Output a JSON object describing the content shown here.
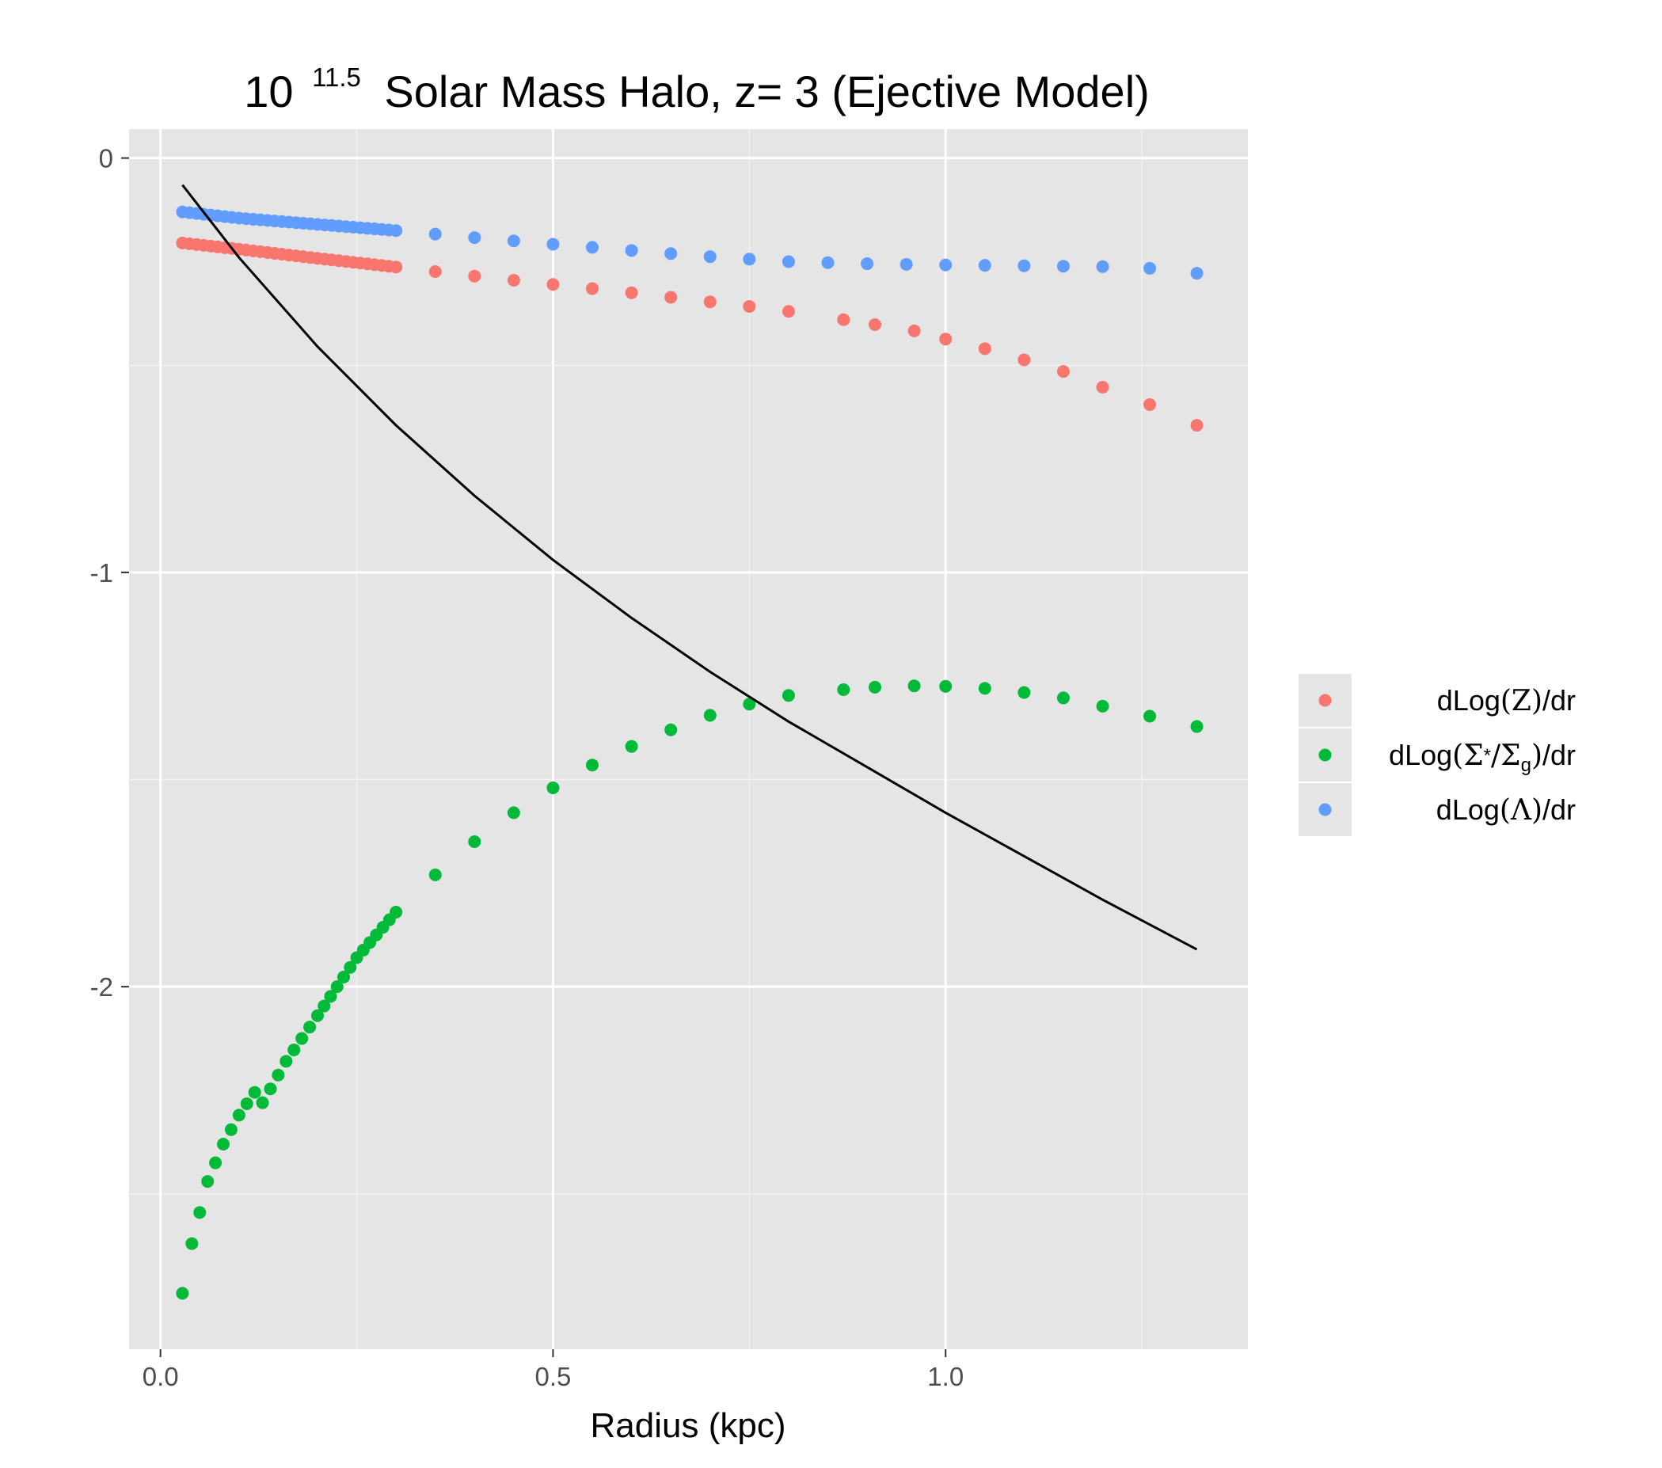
{
  "chart_data": {
    "type": "scatter",
    "title": {
      "base": "10",
      "exponent": "11.5",
      "rest": "Solar Mass Halo, z= 3 (Ejective Model)"
    },
    "xlabel": "Radius (kpc)",
    "ylabel": "",
    "xlim": [
      -0.04,
      1.385
    ],
    "ylim": [
      -2.875,
      0.07
    ],
    "x_ticks": [
      {
        "value": 0.0,
        "label": "0.0"
      },
      {
        "value": 0.5,
        "label": "0.5"
      },
      {
        "value": 1.0,
        "label": "1.0"
      }
    ],
    "x_minor": [
      0.25,
      0.75,
      1.25
    ],
    "y_ticks": [
      {
        "value": 0,
        "label": "0"
      },
      {
        "value": -1,
        "label": "-1"
      },
      {
        "value": -2,
        "label": "-2"
      }
    ],
    "y_minor": [
      -0.5,
      -1.5,
      -2.5
    ],
    "grid": true,
    "legend_position": "right",
    "legend": [
      {
        "series": "z",
        "label": "dLog(Z)/dr"
      },
      {
        "series": "ratio",
        "label": "dLog(Σ*/Σg)/dr"
      },
      {
        "series": "lambda",
        "label": "dLog(Λ)/dr"
      }
    ],
    "series": [
      {
        "key": "z",
        "color": "#F8766D",
        "points": [
          [
            0.028,
            -0.205
          ],
          [
            0.1,
            -0.22
          ],
          [
            0.2,
            -0.242
          ],
          [
            0.3,
            -0.263
          ],
          [
            0.4,
            -0.285
          ],
          [
            0.5,
            -0.305
          ],
          [
            0.6,
            -0.325
          ],
          [
            0.7,
            -0.347
          ],
          [
            0.75,
            -0.358
          ],
          [
            0.8,
            -0.37
          ],
          [
            0.87,
            -0.39
          ],
          [
            0.91,
            -0.402
          ],
          [
            0.96,
            -0.417
          ],
          [
            1.0,
            -0.437
          ],
          [
            1.05,
            -0.46
          ],
          [
            1.1,
            -0.487
          ],
          [
            1.15,
            -0.515
          ],
          [
            1.2,
            -0.553
          ],
          [
            1.26,
            -0.595
          ],
          [
            1.32,
            -0.645
          ]
        ]
      },
      {
        "key": "ratio",
        "color": "#00BA38",
        "points": [
          [
            0.028,
            -2.74
          ],
          [
            0.04,
            -2.62
          ],
          [
            0.06,
            -2.47
          ],
          [
            0.08,
            -2.38
          ],
          [
            0.1,
            -2.31
          ],
          [
            0.12,
            -2.255
          ],
          [
            0.13,
            -2.28
          ],
          [
            0.16,
            -2.18
          ],
          [
            0.2,
            -2.07
          ],
          [
            0.25,
            -1.93
          ],
          [
            0.3,
            -1.82
          ],
          [
            0.35,
            -1.73
          ],
          [
            0.4,
            -1.65
          ],
          [
            0.45,
            -1.58
          ],
          [
            0.5,
            -1.52
          ],
          [
            0.55,
            -1.465
          ],
          [
            0.6,
            -1.42
          ],
          [
            0.65,
            -1.38
          ],
          [
            0.7,
            -1.345
          ],
          [
            0.75,
            -1.318
          ],
          [
            0.8,
            -1.297
          ],
          [
            0.87,
            -1.283
          ],
          [
            0.91,
            -1.277
          ],
          [
            0.96,
            -1.274
          ],
          [
            1.0,
            -1.275
          ],
          [
            1.05,
            -1.28
          ],
          [
            1.1,
            -1.29
          ],
          [
            1.15,
            -1.303
          ],
          [
            1.2,
            -1.323
          ],
          [
            1.26,
            -1.347
          ],
          [
            1.32,
            -1.372
          ]
        ]
      },
      {
        "key": "lambda",
        "color": "#619CFF",
        "points": [
          [
            0.028,
            -0.13
          ],
          [
            0.1,
            -0.145
          ],
          [
            0.2,
            -0.16
          ],
          [
            0.3,
            -0.175
          ],
          [
            0.4,
            -0.192
          ],
          [
            0.5,
            -0.208
          ],
          [
            0.6,
            -0.223
          ],
          [
            0.7,
            -0.238
          ],
          [
            0.8,
            -0.25
          ],
          [
            0.9,
            -0.255
          ],
          [
            1.0,
            -0.258
          ],
          [
            1.1,
            -0.26
          ],
          [
            1.2,
            -0.262
          ],
          [
            1.26,
            -0.266
          ],
          [
            1.32,
            -0.278
          ]
        ]
      }
    ],
    "line": {
      "color": "#000000",
      "points": [
        [
          0.028,
          -0.065
        ],
        [
          0.1,
          -0.24
        ],
        [
          0.2,
          -0.455
        ],
        [
          0.3,
          -0.645
        ],
        [
          0.4,
          -0.815
        ],
        [
          0.5,
          -0.97
        ],
        [
          0.6,
          -1.11
        ],
        [
          0.7,
          -1.24
        ],
        [
          0.8,
          -1.36
        ],
        [
          0.9,
          -1.47
        ],
        [
          1.0,
          -1.58
        ],
        [
          1.1,
          -1.685
        ],
        [
          1.2,
          -1.79
        ],
        [
          1.32,
          -1.91
        ]
      ]
    }
  }
}
